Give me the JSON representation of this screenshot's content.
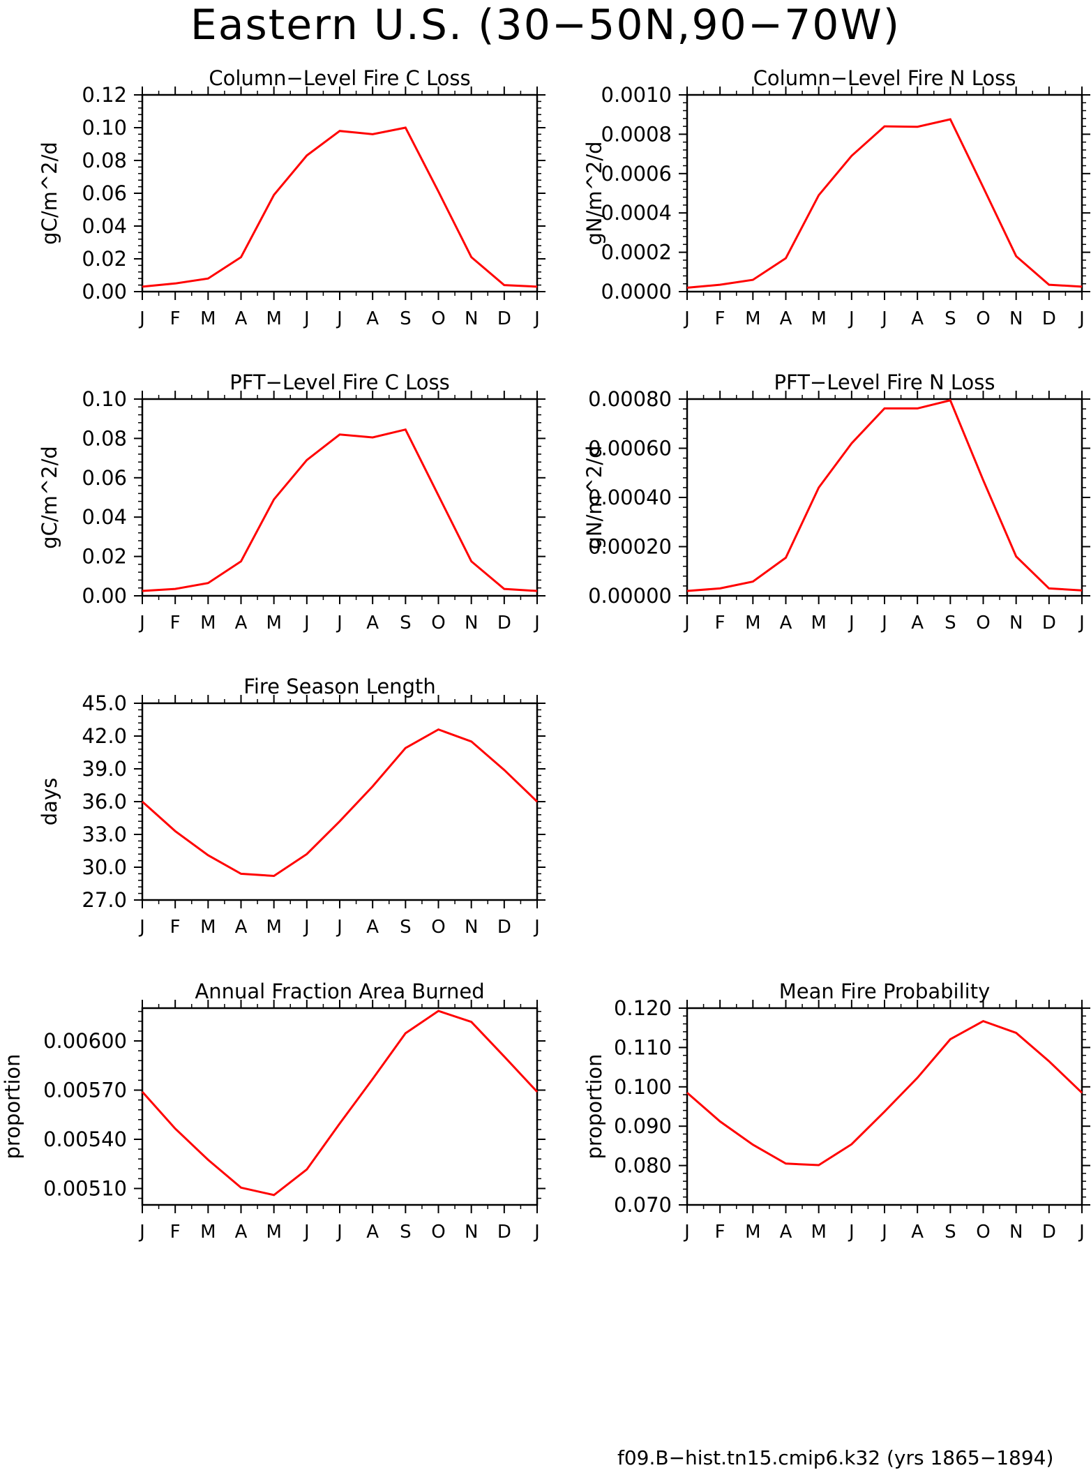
{
  "title": "Eastern U.S. (30−50N,90−70W)",
  "legend": {
    "label": "f09.B−hist.tn15.cmip6.k32 (yrs 1865−1894)",
    "color": "#ff0000"
  },
  "chart_data": [
    {
      "id": "col-fire-c-loss",
      "type": "line",
      "title": "Column−Level Fire C Loss",
      "ylabel": "gC/m^2/d",
      "xlabel": "",
      "x": [
        "J",
        "F",
        "M",
        "A",
        "M",
        "J",
        "J",
        "A",
        "S",
        "O",
        "N",
        "D",
        "J"
      ],
      "ylim": [
        0.0,
        0.12
      ],
      "yticks": [
        0.0,
        0.02,
        0.04,
        0.06,
        0.08,
        0.1,
        0.12
      ],
      "yticklabels": [
        "0.00",
        "0.02",
        "0.04",
        "0.06",
        "0.08",
        "0.10",
        "0.12"
      ],
      "series": [
        {
          "values": [
            0.003,
            0.005,
            0.008,
            0.021,
            0.059,
            0.083,
            0.098,
            0.096,
            0.1,
            0.061,
            0.021,
            0.004,
            0.003
          ],
          "color": "#ff0000"
        }
      ]
    },
    {
      "id": "col-fire-n-loss",
      "type": "line",
      "title": "Column−Level Fire N Loss",
      "ylabel": "gN/m^2/d",
      "xlabel": "",
      "x": [
        "J",
        "F",
        "M",
        "A",
        "M",
        "J",
        "J",
        "A",
        "S",
        "O",
        "N",
        "D",
        "J"
      ],
      "ylim": [
        0.0,
        0.001
      ],
      "yticks": [
        0.0,
        0.0002,
        0.0004,
        0.0006,
        0.0008,
        0.001
      ],
      "yticklabels": [
        "0.0000",
        "0.0002",
        "0.0004",
        "0.0006",
        "0.0008",
        "0.0010"
      ],
      "series": [
        {
          "values": [
            2e-05,
            3.5e-05,
            6e-05,
            0.00017,
            0.00049,
            0.00069,
            0.00084,
            0.000838,
            0.000876,
            0.00053,
            0.00018,
            3.5e-05,
            2.5e-05
          ],
          "color": "#ff0000"
        }
      ]
    },
    {
      "id": "pft-fire-c-loss",
      "type": "line",
      "title": "PFT−Level Fire C Loss",
      "ylabel": "gC/m^2/d",
      "xlabel": "",
      "x": [
        "J",
        "F",
        "M",
        "A",
        "M",
        "J",
        "J",
        "A",
        "S",
        "O",
        "N",
        "D",
        "J"
      ],
      "ylim": [
        0.0,
        0.1
      ],
      "yticks": [
        0.0,
        0.02,
        0.04,
        0.06,
        0.08,
        0.1
      ],
      "yticklabels": [
        "0.00",
        "0.02",
        "0.04",
        "0.06",
        "0.08",
        "0.10"
      ],
      "series": [
        {
          "values": [
            0.0025,
            0.0035,
            0.0065,
            0.0175,
            0.049,
            0.069,
            0.082,
            0.0805,
            0.0845,
            0.051,
            0.0175,
            0.0035,
            0.0025
          ],
          "color": "#ff0000"
        }
      ]
    },
    {
      "id": "pft-fire-n-loss",
      "type": "line",
      "title": "PFT−Level Fire N Loss",
      "ylabel": "gN/m^2/d",
      "xlabel": "",
      "x": [
        "J",
        "F",
        "M",
        "A",
        "M",
        "J",
        "J",
        "A",
        "S",
        "O",
        "N",
        "D",
        "J"
      ],
      "ylim": [
        0.0,
        0.0008
      ],
      "yticks": [
        0.0,
        0.0002,
        0.0004,
        0.0006,
        0.0008
      ],
      "yticklabels": [
        "0.00000",
        "0.00020",
        "0.00040",
        "0.00060",
        "0.00080"
      ],
      "series": [
        {
          "values": [
            2e-05,
            3e-05,
            5.8e-05,
            0.000155,
            0.00044,
            0.00062,
            0.000762,
            0.000762,
            0.000795,
            0.00047,
            0.00016,
            3e-05,
            2.2e-05
          ],
          "color": "#ff0000"
        }
      ]
    },
    {
      "id": "fire-season-length",
      "type": "line",
      "title": "Fire Season Length",
      "ylabel": "days",
      "xlabel": "",
      "x": [
        "J",
        "F",
        "M",
        "A",
        "M",
        "J",
        "J",
        "A",
        "S",
        "O",
        "N",
        "D",
        "J"
      ],
      "ylim": [
        27.0,
        45.0
      ],
      "yticks": [
        27.0,
        30.0,
        33.0,
        36.0,
        39.0,
        42.0,
        45.0
      ],
      "yticklabels": [
        "27.0",
        "30.0",
        "33.0",
        "36.0",
        "39.0",
        "42.0",
        "45.0"
      ],
      "series": [
        {
          "values": [
            36.0,
            33.3,
            31.1,
            29.4,
            29.2,
            31.2,
            34.2,
            37.4,
            40.9,
            42.6,
            41.5,
            38.9,
            36.0
          ],
          "color": "#ff0000"
        }
      ]
    },
    {
      "id": "annual-fraction-area-burned",
      "type": "line",
      "title": "Annual Fraction Area Burned",
      "ylabel": "proportion",
      "xlabel": "",
      "x": [
        "J",
        "F",
        "M",
        "A",
        "M",
        "J",
        "J",
        "A",
        "S",
        "O",
        "N",
        "D",
        "J"
      ],
      "ylim": [
        0.005,
        0.0062
      ],
      "yticks": [
        0.0051,
        0.0054,
        0.0057,
        0.006
      ],
      "yticklabels": [
        "0.00510",
        "0.00540",
        "0.00570",
        "0.00600"
      ],
      "series": [
        {
          "values": [
            0.00569,
            0.005465,
            0.005275,
            0.005105,
            0.00506,
            0.005216,
            0.005496,
            0.005768,
            0.006047,
            0.006183,
            0.006116,
            0.005905,
            0.00569
          ],
          "color": "#ff0000"
        }
      ]
    },
    {
      "id": "mean-fire-probability",
      "type": "line",
      "title": "Mean Fire Probability",
      "ylabel": "proportion",
      "xlabel": "",
      "x": [
        "J",
        "F",
        "M",
        "A",
        "M",
        "J",
        "J",
        "A",
        "S",
        "O",
        "N",
        "D",
        "J"
      ],
      "ylim": [
        0.07,
        0.12
      ],
      "yticks": [
        0.07,
        0.08,
        0.09,
        0.1,
        0.11,
        0.12
      ],
      "yticklabels": [
        "0.070",
        "0.080",
        "0.090",
        "0.100",
        "0.110",
        "0.120"
      ],
      "series": [
        {
          "values": [
            0.0985,
            0.0912,
            0.0853,
            0.0805,
            0.0801,
            0.0854,
            0.0937,
            0.1023,
            0.1121,
            0.1167,
            0.1137,
            0.1065,
            0.0985
          ],
          "color": "#ff0000"
        }
      ]
    }
  ]
}
